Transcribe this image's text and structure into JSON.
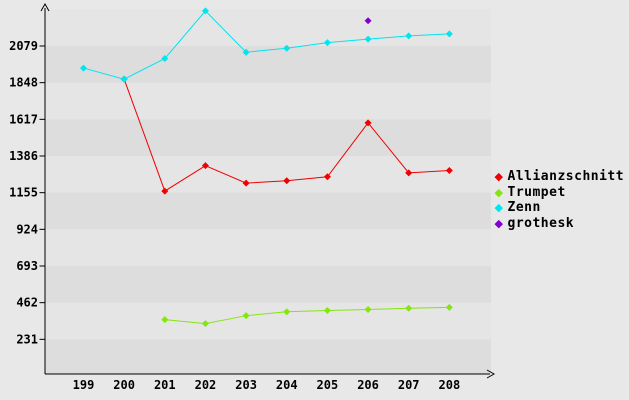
{
  "chart_data": {
    "type": "line",
    "title": "",
    "xlabel": "",
    "ylabel": "",
    "x_ticks": [
      199,
      200,
      201,
      202,
      203,
      204,
      205,
      206,
      207,
      208
    ],
    "y_ticks": [
      231,
      462,
      693,
      924,
      1155,
      1386,
      1617,
      1848,
      2079
    ],
    "x_range": [
      198.05,
      209.05
    ],
    "y_range": [
      0,
      2310
    ],
    "grid": "alternating horizontal bands",
    "legend_position": "right-center",
    "series": [
      {
        "name": "Allianzschnitt",
        "color": "#f00000",
        "marker": "diamond",
        "points": [
          [
            200,
            1870
          ],
          [
            201,
            1165
          ],
          [
            202,
            1325
          ],
          [
            203,
            1215
          ],
          [
            204,
            1230
          ],
          [
            205,
            1255
          ],
          [
            206,
            1595
          ],
          [
            207,
            1280
          ],
          [
            208,
            1295
          ]
        ]
      },
      {
        "name": "Trumpet",
        "color": "#85e510",
        "marker": "diamond",
        "points": [
          [
            201,
            355
          ],
          [
            202,
            330
          ],
          [
            203,
            380
          ],
          [
            204,
            405
          ],
          [
            205,
            413
          ],
          [
            206,
            419
          ],
          [
            207,
            427
          ],
          [
            208,
            432
          ]
        ]
      },
      {
        "name": "Zenn",
        "color": "#00e5ee",
        "marker": "diamond",
        "points": [
          [
            199,
            1940
          ],
          [
            200,
            1870
          ],
          [
            201,
            2000
          ],
          [
            202,
            2300
          ],
          [
            203,
            2040
          ],
          [
            204,
            2065
          ],
          [
            205,
            2100
          ],
          [
            206,
            2122
          ],
          [
            207,
            2143
          ],
          [
            208,
            2155
          ]
        ]
      },
      {
        "name": "grothesk",
        "color": "#8000d0",
        "marker": "diamond",
        "points": [
          [
            206,
            2238
          ]
        ]
      }
    ],
    "colors": {
      "background_outer": "#e8e8e8",
      "band_light": "#e5e5e5",
      "band_dark": "#dddddd",
      "axis": "#000000",
      "tick_text": "#000000"
    }
  }
}
